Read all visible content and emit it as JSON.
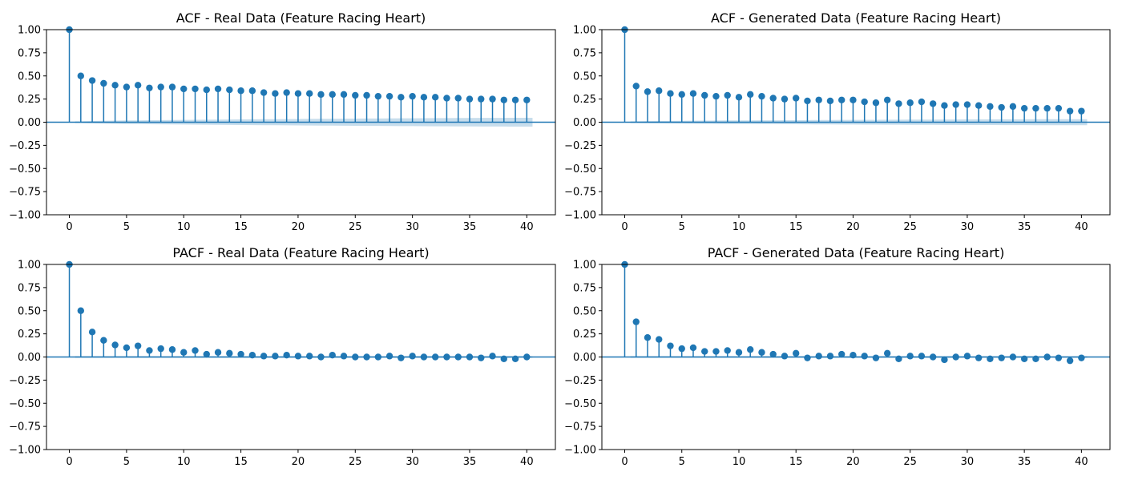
{
  "figure": {
    "background": "#ffffff"
  },
  "style": {
    "stem_color": "#1f77b4",
    "band_color": "#1f77b4",
    "band_opacity": 0.25
  },
  "chart_data": [
    {
      "type": "stem",
      "title": "ACF - Real Data (Feature Racing Heart)",
      "xlabel": "",
      "ylabel": "",
      "xlim": [
        -2,
        42.5
      ],
      "ylim": [
        -1,
        1
      ],
      "xticks": [
        0,
        5,
        10,
        15,
        20,
        25,
        30,
        35,
        40
      ],
      "yticks": [
        1.0,
        0.75,
        0.5,
        0.25,
        0.0,
        -0.25,
        -0.5,
        -0.75,
        -1.0
      ],
      "ytick_labels": [
        "1.00",
        "0.75",
        "0.50",
        "0.25",
        "0.00",
        "−0.25",
        "−0.50",
        "−0.75",
        "−1.00"
      ],
      "grid": false,
      "lags": [
        0,
        1,
        2,
        3,
        4,
        5,
        6,
        7,
        8,
        9,
        10,
        11,
        12,
        13,
        14,
        15,
        16,
        17,
        18,
        19,
        20,
        21,
        22,
        23,
        24,
        25,
        26,
        27,
        28,
        29,
        30,
        31,
        32,
        33,
        34,
        35,
        36,
        37,
        38,
        39,
        40
      ],
      "values": [
        1.0,
        0.5,
        0.45,
        0.42,
        0.4,
        0.38,
        0.4,
        0.37,
        0.38,
        0.38,
        0.36,
        0.36,
        0.35,
        0.36,
        0.35,
        0.34,
        0.34,
        0.32,
        0.31,
        0.32,
        0.31,
        0.31,
        0.3,
        0.3,
        0.3,
        0.29,
        0.29,
        0.28,
        0.28,
        0.27,
        0.28,
        0.27,
        0.27,
        0.26,
        0.26,
        0.25,
        0.25,
        0.25,
        0.24,
        0.24,
        0.24
      ],
      "confint": [
        0.0,
        0.01,
        0.013,
        0.015,
        0.017,
        0.019,
        0.02,
        0.022,
        0.023,
        0.024,
        0.025,
        0.026,
        0.027,
        0.028,
        0.029,
        0.03,
        0.031,
        0.032,
        0.033,
        0.034,
        0.035,
        0.036,
        0.037,
        0.037,
        0.038,
        0.039,
        0.04,
        0.04,
        0.041,
        0.042,
        0.042,
        0.043,
        0.044,
        0.044,
        0.045,
        0.045,
        0.046,
        0.047,
        0.047,
        0.048,
        0.048
      ]
    },
    {
      "type": "stem",
      "title": "ACF - Generated Data (Feature Racing Heart)",
      "xlabel": "",
      "ylabel": "",
      "xlim": [
        -2,
        42.5
      ],
      "ylim": [
        -1,
        1
      ],
      "xticks": [
        0,
        5,
        10,
        15,
        20,
        25,
        30,
        35,
        40
      ],
      "yticks": [
        1.0,
        0.75,
        0.5,
        0.25,
        0.0,
        -0.25,
        -0.5,
        -0.75,
        -1.0
      ],
      "ytick_labels": [
        "1.00",
        "0.75",
        "0.50",
        "0.25",
        "0.00",
        "−0.25",
        "−0.50",
        "−0.75",
        "−1.00"
      ],
      "grid": false,
      "lags": [
        0,
        1,
        2,
        3,
        4,
        5,
        6,
        7,
        8,
        9,
        10,
        11,
        12,
        13,
        14,
        15,
        16,
        17,
        18,
        19,
        20,
        21,
        22,
        23,
        24,
        25,
        26,
        27,
        28,
        29,
        30,
        31,
        32,
        33,
        34,
        35,
        36,
        37,
        38,
        39,
        40
      ],
      "values": [
        1.0,
        0.39,
        0.33,
        0.34,
        0.31,
        0.3,
        0.31,
        0.29,
        0.28,
        0.29,
        0.27,
        0.3,
        0.28,
        0.26,
        0.25,
        0.26,
        0.23,
        0.24,
        0.23,
        0.24,
        0.24,
        0.22,
        0.21,
        0.24,
        0.2,
        0.21,
        0.22,
        0.2,
        0.18,
        0.19,
        0.19,
        0.18,
        0.17,
        0.16,
        0.17,
        0.15,
        0.15,
        0.15,
        0.15,
        0.12,
        0.12
      ],
      "confint": [
        0.0,
        0.01,
        0.012,
        0.013,
        0.014,
        0.015,
        0.016,
        0.017,
        0.018,
        0.019,
        0.019,
        0.02,
        0.021,
        0.021,
        0.022,
        0.022,
        0.023,
        0.024,
        0.024,
        0.025,
        0.025,
        0.026,
        0.026,
        0.027,
        0.027,
        0.028,
        0.028,
        0.028,
        0.029,
        0.029,
        0.03,
        0.03,
        0.03,
        0.031,
        0.031,
        0.031,
        0.032,
        0.032,
        0.032,
        0.033,
        0.033
      ]
    },
    {
      "type": "stem",
      "title": "PACF - Real Data (Feature Racing Heart)",
      "xlabel": "",
      "ylabel": "",
      "xlim": [
        -2,
        42.5
      ],
      "ylim": [
        -1,
        1
      ],
      "xticks": [
        0,
        5,
        10,
        15,
        20,
        25,
        30,
        35,
        40
      ],
      "yticks": [
        1.0,
        0.75,
        0.5,
        0.25,
        0.0,
        -0.25,
        -0.5,
        -0.75,
        -1.0
      ],
      "ytick_labels": [
        "1.00",
        "0.75",
        "0.50",
        "0.25",
        "0.00",
        "−0.25",
        "−0.50",
        "−0.75",
        "−1.00"
      ],
      "grid": false,
      "lags": [
        0,
        1,
        2,
        3,
        4,
        5,
        6,
        7,
        8,
        9,
        10,
        11,
        12,
        13,
        14,
        15,
        16,
        17,
        18,
        19,
        20,
        21,
        22,
        23,
        24,
        25,
        26,
        27,
        28,
        29,
        30,
        31,
        32,
        33,
        34,
        35,
        36,
        37,
        38,
        39,
        40
      ],
      "values": [
        1.0,
        0.5,
        0.27,
        0.18,
        0.13,
        0.1,
        0.12,
        0.07,
        0.09,
        0.08,
        0.05,
        0.07,
        0.03,
        0.05,
        0.04,
        0.03,
        0.02,
        0.01,
        0.01,
        0.02,
        0.01,
        0.01,
        0.0,
        0.02,
        0.01,
        0.0,
        0.0,
        0.0,
        0.01,
        -0.01,
        0.01,
        0.0,
        0.0,
        0.0,
        0.0,
        0.0,
        -0.01,
        0.01,
        -0.02,
        -0.02,
        0.0
      ],
      "confint": [
        0.0,
        0.01,
        0.01,
        0.01,
        0.01,
        0.01,
        0.01,
        0.01,
        0.01,
        0.01,
        0.01,
        0.01,
        0.01,
        0.01,
        0.01,
        0.01,
        0.01,
        0.01,
        0.01,
        0.01,
        0.01,
        0.01,
        0.01,
        0.01,
        0.01,
        0.01,
        0.01,
        0.01,
        0.01,
        0.01,
        0.01,
        0.01,
        0.01,
        0.01,
        0.01,
        0.01,
        0.01,
        0.01,
        0.01,
        0.01,
        0.01
      ]
    },
    {
      "type": "stem",
      "title": "PACF - Generated Data (Feature Racing Heart)",
      "xlabel": "",
      "ylabel": "",
      "xlim": [
        -2,
        42.5
      ],
      "ylim": [
        -1,
        1
      ],
      "xticks": [
        0,
        5,
        10,
        15,
        20,
        25,
        30,
        35,
        40
      ],
      "yticks": [
        1.0,
        0.75,
        0.5,
        0.25,
        0.0,
        -0.25,
        -0.5,
        -0.75,
        -1.0
      ],
      "ytick_labels": [
        "1.00",
        "0.75",
        "0.50",
        "0.25",
        "0.00",
        "−0.25",
        "−0.50",
        "−0.75",
        "−1.00"
      ],
      "grid": false,
      "lags": [
        0,
        1,
        2,
        3,
        4,
        5,
        6,
        7,
        8,
        9,
        10,
        11,
        12,
        13,
        14,
        15,
        16,
        17,
        18,
        19,
        20,
        21,
        22,
        23,
        24,
        25,
        26,
        27,
        28,
        29,
        30,
        31,
        32,
        33,
        34,
        35,
        36,
        37,
        38,
        39,
        40
      ],
      "values": [
        1.0,
        0.38,
        0.21,
        0.19,
        0.12,
        0.09,
        0.1,
        0.06,
        0.06,
        0.07,
        0.05,
        0.08,
        0.05,
        0.03,
        0.01,
        0.04,
        -0.01,
        0.01,
        0.01,
        0.03,
        0.02,
        0.01,
        -0.01,
        0.04,
        -0.02,
        0.01,
        0.01,
        0.0,
        -0.03,
        0.0,
        0.01,
        -0.01,
        -0.02,
        -0.01,
        0.0,
        -0.02,
        -0.02,
        0.0,
        -0.01,
        -0.04,
        -0.01
      ],
      "confint": [
        0.0,
        0.01,
        0.01,
        0.01,
        0.01,
        0.01,
        0.01,
        0.01,
        0.01,
        0.01,
        0.01,
        0.01,
        0.01,
        0.01,
        0.01,
        0.01,
        0.01,
        0.01,
        0.01,
        0.01,
        0.01,
        0.01,
        0.01,
        0.01,
        0.01,
        0.01,
        0.01,
        0.01,
        0.01,
        0.01,
        0.01,
        0.01,
        0.01,
        0.01,
        0.01,
        0.01,
        0.01,
        0.01,
        0.01,
        0.01,
        0.01
      ]
    }
  ]
}
